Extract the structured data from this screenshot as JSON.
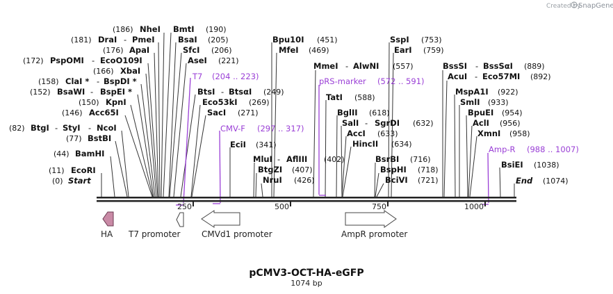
{
  "credit": {
    "prefix": "Created by",
    "brand": "SnapGene"
  },
  "plasmid": {
    "name": "pCMV3-OCT-HA-eGFP",
    "length": 1074,
    "size_label": "1074 bp"
  },
  "axis": {
    "ticks": [
      "250",
      "500",
      "750",
      "1000"
    ]
  },
  "sites": [
    {
      "pos": "(186)",
      "name": "NheI",
      "after": ""
    },
    {
      "pos": "(181)",
      "name": "DraI",
      "sep": "-",
      "name2": "PmeI",
      "after": ""
    },
    {
      "pos": "(176)",
      "name": "ApaI",
      "after": ""
    },
    {
      "pos": "(172)",
      "name": "PspOMI",
      "sep": "-",
      "name2": "EcoO109I",
      "after": ""
    },
    {
      "pos": "(166)",
      "name": "XbaI",
      "after": ""
    },
    {
      "pos": "(158)",
      "name": "ClaI *",
      "sep": "-",
      "name2": "BspDI *",
      "after": ""
    },
    {
      "pos": "(152)",
      "name": "BsaWI",
      "sep": "-",
      "name2": "BspEI *",
      "after": ""
    },
    {
      "pos": "(150)",
      "name": "KpnI",
      "after": ""
    },
    {
      "pos": "(146)",
      "name": "Acc65I",
      "after": ""
    },
    {
      "pos": "(82)",
      "name": "BtgI",
      "sep": "-",
      "name2": "StyI",
      "sep2": "-",
      "name3": "NcoI",
      "after": ""
    },
    {
      "pos": "(77)",
      "name": "BstBI",
      "after": ""
    },
    {
      "pos": "(44)",
      "name": "BamHI",
      "after": ""
    },
    {
      "pos": "(11)",
      "name": "EcoRI",
      "after": ""
    },
    {
      "pos": "(0)",
      "name": "Start",
      "after": ""
    },
    {
      "name": "BmtI",
      "after": "(190)"
    },
    {
      "name": "BsaI",
      "after": "(205)"
    },
    {
      "name": "SfcI",
      "after": "(206)"
    },
    {
      "name": "AseI",
      "after": "(221)"
    },
    {
      "name": "BtsI",
      "sep": "-",
      "name2": "BtsαI",
      "after": "(249)"
    },
    {
      "name": "Eco53kI",
      "after": "(269)"
    },
    {
      "name": "SacI",
      "after": "(271)"
    },
    {
      "name": "EciI",
      "after": "(341)"
    },
    {
      "name": "Bpu10I",
      "after": "(451)"
    },
    {
      "name": "MfeI",
      "after": "(469)"
    },
    {
      "name": "MluI",
      "sep": "-",
      "name2": "AflIII",
      "after": "(402)"
    },
    {
      "name": "BtgZI",
      "after": "(407)"
    },
    {
      "name": "NruI",
      "after": "(426)"
    },
    {
      "name": "MmeI",
      "sep": "-",
      "name2": "AlwNI",
      "after": "(557)"
    },
    {
      "name": "TatI",
      "after": "(588)"
    },
    {
      "name": "BglII",
      "after": "(618)"
    },
    {
      "name": "SalI",
      "sep": "-",
      "name2": "SgrDI",
      "after": "(632)"
    },
    {
      "name": "AccI",
      "after": "(633)"
    },
    {
      "name": "HincII",
      "after": "(634)"
    },
    {
      "name": "SspI",
      "after": "(753)"
    },
    {
      "name": "EarI",
      "after": "(759)"
    },
    {
      "name": "BsrBI",
      "after": "(716)"
    },
    {
      "name": "BspHI",
      "after": "(718)"
    },
    {
      "name": "BciVI",
      "after": "(721)"
    },
    {
      "name": "BssSI",
      "sep": "-",
      "name2": "BssSαI",
      "after": "(889)"
    },
    {
      "name": "AcuI",
      "sep": "-",
      "name2": "Eco57MI",
      "after": "(892)"
    },
    {
      "name": "MspA1I",
      "after": "(922)"
    },
    {
      "name": "SmlI",
      "after": "(933)"
    },
    {
      "name": "BpuEI",
      "after": "(954)"
    },
    {
      "name": "AclI",
      "after": "(956)"
    },
    {
      "name": "XmnI",
      "after": "(958)"
    },
    {
      "name": "BsiEI",
      "after": "(1038)"
    },
    {
      "name": "End",
      "after": "(1074)"
    }
  ],
  "primers": [
    {
      "name": "T7",
      "range": "(204 .. 223)"
    },
    {
      "name": "CMV-F",
      "range": "(297 .. 317)"
    },
    {
      "name": "pRS-marker",
      "range": "(572 .. 591)"
    },
    {
      "name": "Amp-R",
      "range": "(988 .. 1007)"
    }
  ],
  "features": [
    {
      "name": "HA",
      "color": "#c98aa6"
    },
    {
      "name": "T7 promoter",
      "color": "#ffffff"
    },
    {
      "name": "CMVd1 promoter",
      "color": "#ffffff"
    },
    {
      "name": "AmpR promoter",
      "color": "#ffffff"
    }
  ],
  "colors": {
    "primer": "#9a3fd6",
    "line": "#333333"
  }
}
